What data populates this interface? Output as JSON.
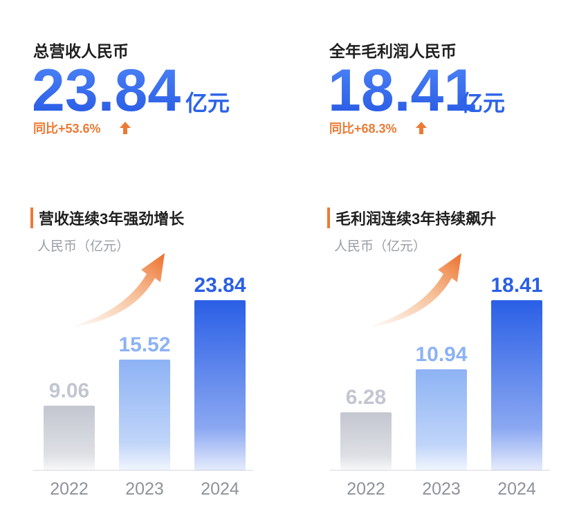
{
  "kpis": [
    {
      "label": "总营收人民币",
      "value": 23.84,
      "unit": "亿元",
      "change": "同比+53.6%"
    },
    {
      "label": "全年毛利润人民币",
      "value": 18.41,
      "unit": "亿元",
      "change": "同比+68.3%"
    }
  ],
  "chart_data": [
    {
      "type": "bar",
      "title": "营收连续3年强劲增长",
      "y_label": "人民币（亿元）",
      "categories": [
        "2022",
        "2023",
        "2024"
      ],
      "values": [
        9.06,
        15.52,
        23.84
      ],
      "colors": [
        "#c3c6d0",
        "#8db2f4",
        "#2a5fe6"
      ]
    },
    {
      "type": "bar",
      "title": "毛利润连续3年持续飙升",
      "y_label": "人民币（亿元）",
      "categories": [
        "2022",
        "2023",
        "2024"
      ],
      "values": [
        6.28,
        10.94,
        18.41
      ],
      "colors": [
        "#c3c6d0",
        "#8db2f4",
        "#2a5fe6"
      ]
    }
  ]
}
